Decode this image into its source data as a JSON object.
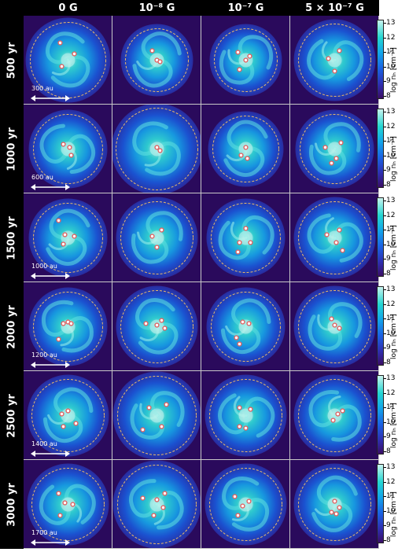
{
  "columns": [
    "0 G",
    "10⁻⁸ G",
    "10⁻⁷ G",
    "5 × 10⁻⁷ G"
  ],
  "rows": [
    {
      "time": "500 yr",
      "scale": "300 au"
    },
    {
      "time": "1000 yr",
      "scale": "600 au"
    },
    {
      "time": "1500 yr",
      "scale": "1000 au"
    },
    {
      "time": "2000 yr",
      "scale": "1200 au"
    },
    {
      "time": "2500 yr",
      "scale": "1400 au"
    },
    {
      "time": "3000 yr",
      "scale": "1700 au"
    }
  ],
  "colorbar": {
    "label": "log nₕ [cm⁻³]",
    "ticks": [
      "13",
      "12",
      "11",
      "10",
      "9",
      "8"
    ],
    "colors": [
      "#2a0a5c",
      "#1c3fc2",
      "#13a4ea",
      "#2fd9cf",
      "#d6f6f2"
    ]
  },
  "colors": {
    "sink": "#e06464",
    "circle": "#e8b86a",
    "background": "#2a0a5c"
  }
}
